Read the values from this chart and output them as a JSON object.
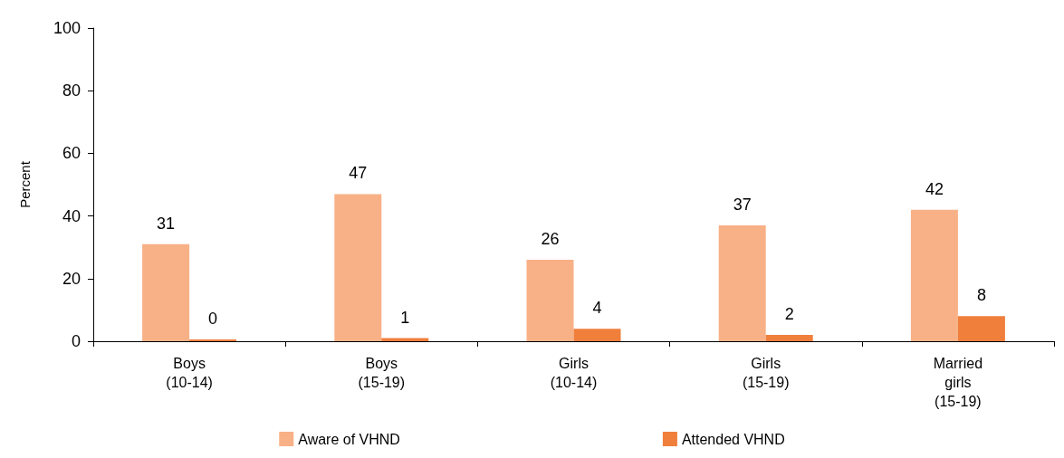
{
  "chart_data": {
    "type": "bar",
    "ylabel": "Percent",
    "categories": [
      "Boys\n(10-14)",
      "Boys\n(15-19)",
      "Girls\n(10-14)",
      "Girls\n(15-19)",
      "Married\ngirls\n(15-19)"
    ],
    "series": [
      {
        "name": "Aware of VHND",
        "color": "#f8b186",
        "values": [
          31,
          47,
          26,
          37,
          42
        ]
      },
      {
        "name": "Attended VHND",
        "color": "#f07f3c",
        "values": [
          0,
          1,
          4,
          2,
          8
        ]
      }
    ],
    "ylim": [
      0,
      100
    ],
    "yticks": [
      0,
      20,
      40,
      60,
      80,
      100
    ],
    "grid": false,
    "legend": "bottom",
    "data_labels": true
  }
}
